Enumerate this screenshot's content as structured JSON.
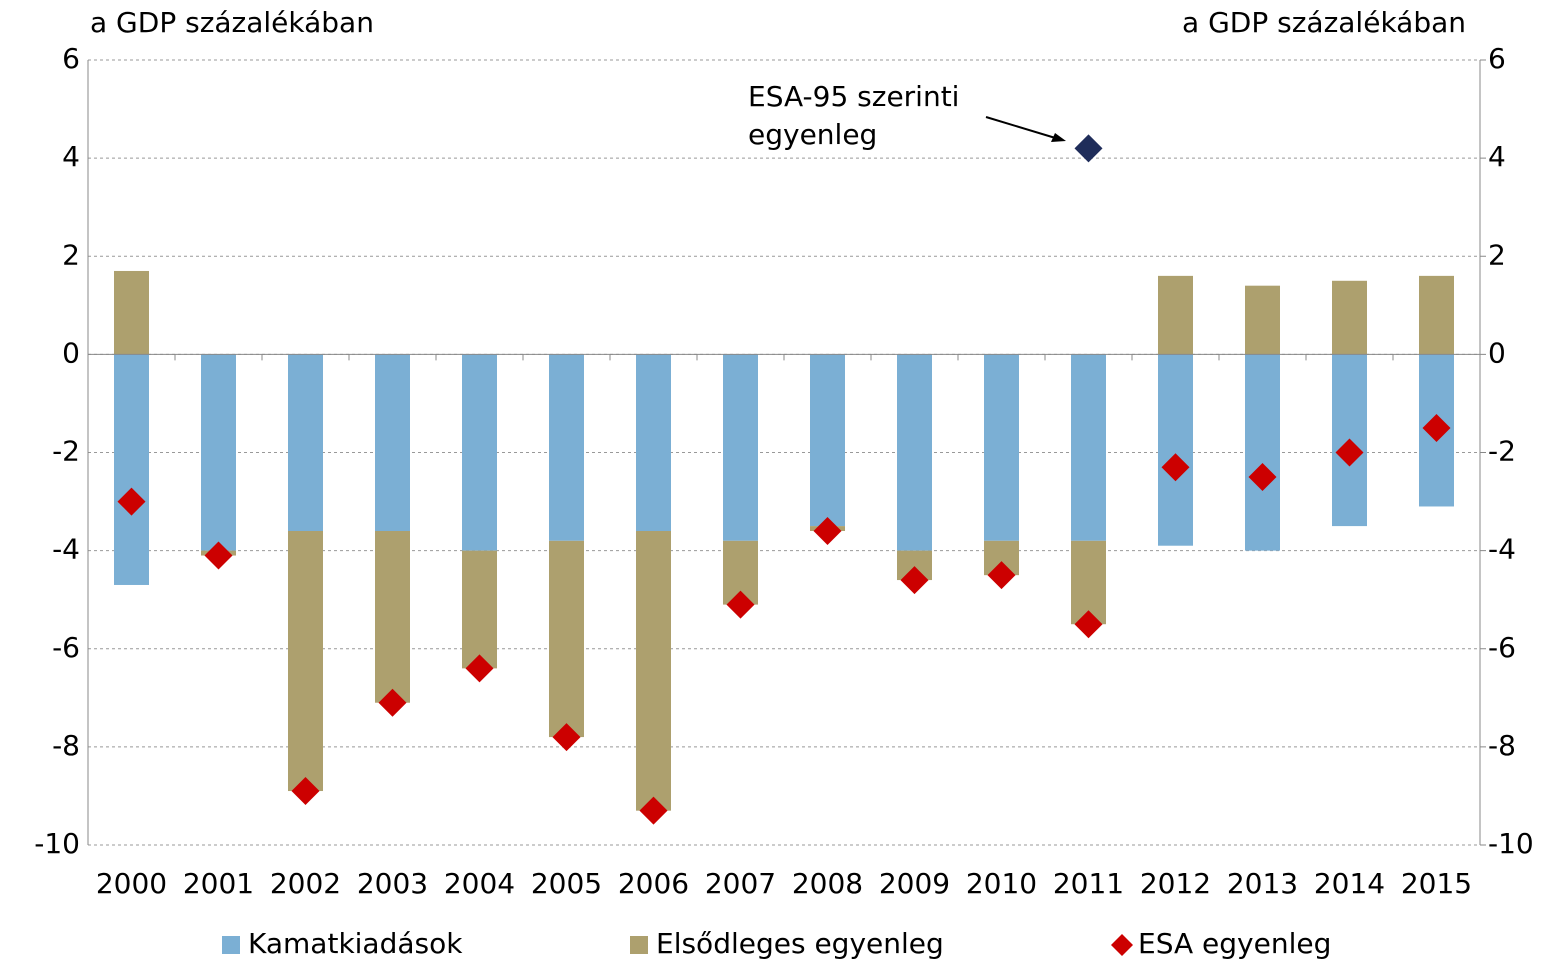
{
  "chart_data": {
    "type": "bar",
    "stacked": true,
    "y_label": "a GDP százalékában",
    "y2_label": "a GDP százalékában",
    "categories": [
      "2000",
      "2001",
      "2002",
      "2003",
      "2004",
      "2005",
      "2006",
      "2007",
      "2008",
      "2009",
      "2010",
      "2011",
      "2012",
      "2013",
      "2014",
      "2015"
    ],
    "series": [
      {
        "name": "Kamatkiadások",
        "color": "#7bafd4",
        "kind": "bar",
        "values": [
          -4.7,
          -4.0,
          -3.6,
          -3.6,
          -4.0,
          -3.8,
          -3.6,
          -3.8,
          -3.5,
          -4.0,
          -3.8,
          -3.8,
          -3.9,
          -4.0,
          -3.5,
          -3.1
        ]
      },
      {
        "name": "Elsődleges egyenleg",
        "color": "#ada06e",
        "kind": "bar",
        "values": [
          1.7,
          -0.1,
          -5.3,
          -3.5,
          -2.4,
          -4.0,
          -5.7,
          -1.3,
          -0.1,
          -0.6,
          -0.7,
          -1.7,
          1.6,
          1.4,
          1.5,
          1.6
        ]
      },
      {
        "name": "ESA egyenleg",
        "color": "#cc0000",
        "kind": "marker",
        "values": [
          -3.0,
          -4.1,
          -8.9,
          -7.1,
          -6.4,
          -7.8,
          -9.3,
          -5.1,
          -3.6,
          -4.6,
          -4.5,
          -5.5,
          -2.3,
          -2.5,
          -2.0,
          -1.5
        ]
      }
    ],
    "annotation": {
      "lines": [
        "ESA-95 szerinti",
        "egyenleg"
      ],
      "category": "2011",
      "value": 4.2,
      "color": "#1f2d5a"
    },
    "ylim": [
      -10,
      6
    ],
    "yticks": [
      -10,
      -8,
      -6,
      -4,
      -2,
      0,
      2,
      4,
      6
    ],
    "y2lim": [
      -10,
      6
    ],
    "y2ticks": [
      -10,
      -8,
      -6,
      -4,
      -2,
      0,
      2,
      4,
      6
    ],
    "grid": true,
    "legend": "bottom"
  }
}
